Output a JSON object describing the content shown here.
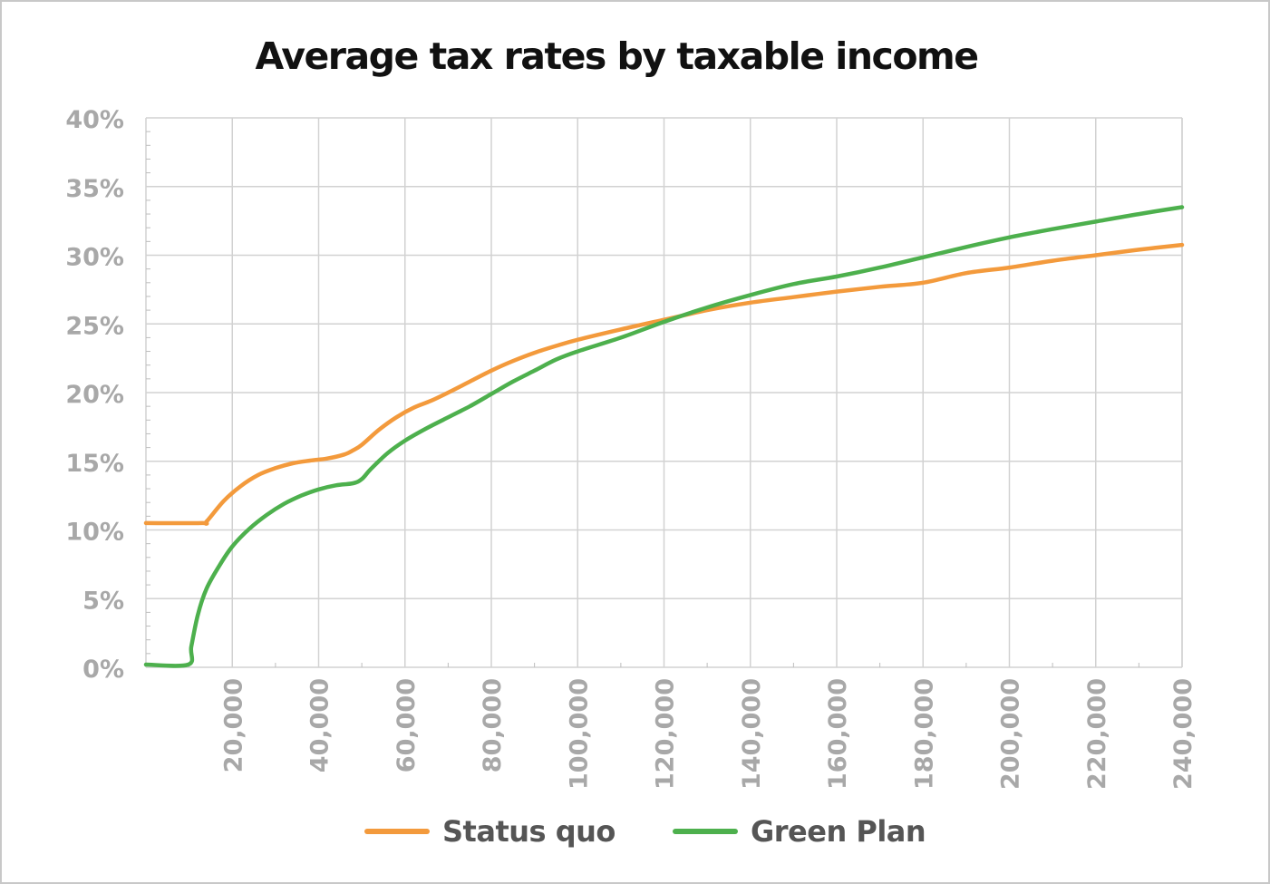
{
  "chart_data": {
    "type": "line",
    "title": "Average tax rates by taxable income",
    "xlabel": "",
    "ylabel": "",
    "xlim": [
      0,
      240000
    ],
    "ylim": [
      0,
      40
    ],
    "x_ticks": [
      20000,
      40000,
      60000,
      80000,
      100000,
      120000,
      140000,
      160000,
      180000,
      200000,
      220000,
      240000
    ],
    "x_tick_labels": [
      "20,000",
      "40,000",
      "60,000",
      "80,000",
      "100,000",
      "120,000",
      "140,000",
      "160,000",
      "180,000",
      "200,000",
      "220,000",
      "240,000"
    ],
    "y_ticks": [
      0,
      5,
      10,
      15,
      20,
      25,
      30,
      35,
      40
    ],
    "y_tick_labels": [
      "0%",
      "5%",
      "10%",
      "15%",
      "20%",
      "25%",
      "30%",
      "35%",
      "40%"
    ],
    "grid": true,
    "legend_position": "bottom",
    "series": [
      {
        "name": "Status quo",
        "color": "#f39a3c",
        "x": [
          0,
          13000,
          14000,
          18000,
          22000,
          26000,
          30000,
          34000,
          38000,
          42000,
          46000,
          48000,
          50000,
          54000,
          58000,
          62000,
          66000,
          70000,
          75000,
          80000,
          85000,
          90000,
          95000,
          100000,
          110000,
          120000,
          130000,
          140000,
          150000,
          160000,
          170000,
          180000,
          190000,
          200000,
          210000,
          220000,
          230000,
          240000
        ],
        "y": [
          10.5,
          10.5,
          10.6,
          12.1,
          13.2,
          14.0,
          14.5,
          14.85,
          15.05,
          15.2,
          15.5,
          15.8,
          16.2,
          17.3,
          18.2,
          18.9,
          19.4,
          20.0,
          20.8,
          21.6,
          22.3,
          22.9,
          23.4,
          23.85,
          24.6,
          25.3,
          26.0,
          26.55,
          26.95,
          27.35,
          27.7,
          28.0,
          28.7,
          29.1,
          29.6,
          30.0,
          30.4,
          30.75
        ]
      },
      {
        "name": "Green Plan",
        "color": "#4db04d",
        "x": [
          0,
          9800,
          10500,
          12000,
          14000,
          17000,
          20000,
          24000,
          28000,
          32000,
          36000,
          40000,
          44000,
          48000,
          50000,
          52000,
          56000,
          60000,
          65000,
          70000,
          75000,
          80000,
          85000,
          90000,
          95000,
          100000,
          110000,
          120000,
          130000,
          140000,
          150000,
          160000,
          170000,
          180000,
          190000,
          200000,
          210000,
          220000,
          230000,
          240000
        ],
        "y": [
          0.2,
          0.2,
          1.5,
          3.8,
          5.7,
          7.4,
          8.8,
          10.1,
          11.1,
          11.9,
          12.5,
          12.95,
          13.25,
          13.4,
          13.7,
          14.4,
          15.6,
          16.5,
          17.4,
          18.2,
          19.0,
          19.9,
          20.8,
          21.6,
          22.4,
          23.0,
          24.0,
          25.15,
          26.2,
          27.1,
          27.9,
          28.45,
          29.1,
          29.85,
          30.6,
          31.3,
          31.9,
          32.45,
          33.0,
          33.5
        ]
      }
    ]
  }
}
